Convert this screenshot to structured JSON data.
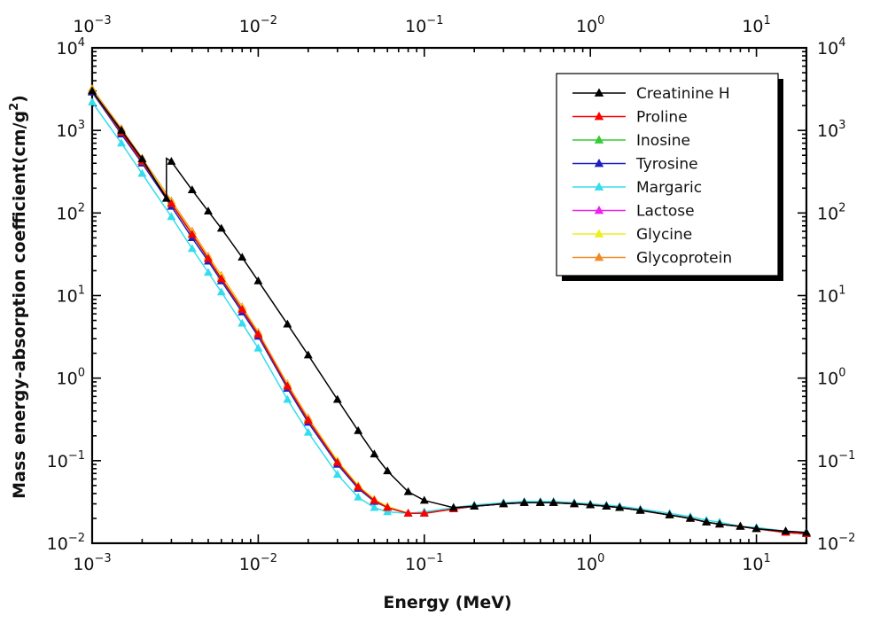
{
  "chart_data": {
    "type": "line",
    "xlabel": "Energy (MeV)",
    "ylabel": "Mass energy-absorption coefficient(cm/g",
    "ylabel_sup": "2",
    "ylabel_tail": ")",
    "x_scale": "log",
    "y_scale": "log",
    "xlim": [
      0.001,
      20
    ],
    "ylim": [
      0.01,
      10000
    ],
    "x_ticks": [
      {
        "value": 0.001,
        "base": "10",
        "exp": "−3"
      },
      {
        "value": 0.01,
        "base": "10",
        "exp": "−2"
      },
      {
        "value": 0.1,
        "base": "10",
        "exp": "−1"
      },
      {
        "value": 1,
        "base": "10",
        "exp": "0"
      },
      {
        "value": 10,
        "base": "10",
        "exp": "1"
      }
    ],
    "y_ticks": [
      {
        "value": 0.01,
        "base": "10",
        "exp": "−2"
      },
      {
        "value": 0.1,
        "base": "10",
        "exp": "−1"
      },
      {
        "value": 1,
        "base": "10",
        "exp": "0"
      },
      {
        "value": 10,
        "base": "10",
        "exp": "1"
      },
      {
        "value": 100,
        "base": "10",
        "exp": "2"
      },
      {
        "value": 1000,
        "base": "10",
        "exp": "3"
      },
      {
        "value": 10000,
        "base": "10",
        "exp": "4"
      }
    ],
    "grid": false,
    "legend_position": "top-right",
    "series": [
      {
        "name": "Creatinine H",
        "color": "#000000",
        "x": [
          0.001,
          0.0015,
          0.002,
          0.0028,
          0.0028,
          0.003,
          0.004,
          0.005,
          0.006,
          0.008,
          0.01,
          0.015,
          0.02,
          0.03,
          0.04,
          0.05,
          0.06,
          0.08,
          0.1,
          0.15,
          0.2,
          0.3,
          0.4,
          0.5,
          0.6,
          0.8,
          1,
          1.25,
          1.5,
          2,
          3,
          4,
          5,
          6,
          8,
          10,
          15,
          20
        ],
        "y": [
          3000,
          1000,
          450,
          150,
          460,
          420,
          190,
          105,
          65,
          29,
          15,
          4.5,
          1.9,
          0.55,
          0.23,
          0.12,
          0.075,
          0.042,
          0.033,
          0.027,
          0.028,
          0.03,
          0.031,
          0.031,
          0.031,
          0.03,
          0.029,
          0.028,
          0.027,
          0.025,
          0.022,
          0.02,
          0.018,
          0.017,
          0.016,
          0.015,
          0.014,
          0.0135
        ]
      },
      {
        "name": "Proline",
        "color": "#ff0000",
        "x": [
          0.001,
          0.0015,
          0.002,
          0.003,
          0.004,
          0.005,
          0.006,
          0.008,
          0.01,
          0.015,
          0.02,
          0.03,
          0.04,
          0.05,
          0.06,
          0.08,
          0.1,
          0.15,
          0.2,
          0.3,
          0.4,
          0.5,
          0.6,
          0.8,
          1,
          1.25,
          1.5,
          2,
          3,
          4,
          5,
          6,
          8,
          10,
          15,
          20
        ],
        "y": [
          3000,
          950,
          420,
          130,
          55,
          28,
          16,
          6.8,
          3.4,
          0.8,
          0.31,
          0.095,
          0.048,
          0.033,
          0.027,
          0.023,
          0.023,
          0.026,
          0.028,
          0.03,
          0.031,
          0.031,
          0.031,
          0.03,
          0.029,
          0.028,
          0.027,
          0.025,
          0.022,
          0.02,
          0.018,
          0.017,
          0.016,
          0.015,
          0.0135,
          0.013
        ]
      },
      {
        "name": "Inosine",
        "color": "#33cc33",
        "x": [
          0.001,
          0.0015,
          0.002,
          0.003,
          0.004,
          0.005,
          0.006,
          0.008,
          0.01,
          0.015,
          0.02,
          0.03,
          0.04,
          0.05,
          0.06,
          0.08,
          0.1,
          0.15,
          0.2,
          0.3,
          0.4,
          0.5,
          0.6,
          0.8,
          1,
          1.25,
          1.5,
          2,
          3,
          4,
          5,
          6,
          8,
          10,
          15,
          20
        ],
        "y": [
          3000,
          950,
          420,
          130,
          55,
          28,
          16,
          6.8,
          3.4,
          0.8,
          0.31,
          0.095,
          0.048,
          0.033,
          0.027,
          0.023,
          0.023,
          0.026,
          0.028,
          0.03,
          0.031,
          0.031,
          0.031,
          0.03,
          0.029,
          0.028,
          0.027,
          0.025,
          0.022,
          0.02,
          0.018,
          0.017,
          0.016,
          0.015,
          0.0135,
          0.013
        ]
      },
      {
        "name": "Tyrosine",
        "color": "#1f1fbf",
        "x": [
          0.001,
          0.0015,
          0.002,
          0.003,
          0.004,
          0.005,
          0.006,
          0.008,
          0.01,
          0.015,
          0.02,
          0.03,
          0.04,
          0.05,
          0.06,
          0.08,
          0.1,
          0.15,
          0.2,
          0.3,
          0.4,
          0.5,
          0.6,
          0.8,
          1,
          1.25,
          1.5,
          2,
          3,
          4,
          5,
          6,
          8,
          10,
          15,
          20
        ],
        "y": [
          2900,
          900,
          400,
          120,
          50,
          26,
          15,
          6.3,
          3.2,
          0.75,
          0.29,
          0.09,
          0.046,
          0.032,
          0.027,
          0.023,
          0.023,
          0.026,
          0.028,
          0.03,
          0.031,
          0.031,
          0.031,
          0.03,
          0.029,
          0.028,
          0.027,
          0.025,
          0.022,
          0.02,
          0.018,
          0.017,
          0.016,
          0.015,
          0.0135,
          0.013
        ]
      },
      {
        "name": "Margaric",
        "color": "#33ddee",
        "x": [
          0.001,
          0.0015,
          0.002,
          0.003,
          0.004,
          0.005,
          0.006,
          0.008,
          0.01,
          0.015,
          0.02,
          0.03,
          0.04,
          0.05,
          0.06,
          0.08,
          0.1,
          0.15,
          0.2,
          0.3,
          0.4,
          0.5,
          0.6,
          0.8,
          1,
          1.25,
          1.5,
          2,
          3,
          4,
          5,
          6,
          8,
          10,
          15,
          20
        ],
        "y": [
          2200,
          700,
          300,
          90,
          37,
          19,
          11,
          4.6,
          2.3,
          0.55,
          0.22,
          0.068,
          0.036,
          0.027,
          0.024,
          0.023,
          0.024,
          0.027,
          0.029,
          0.031,
          0.032,
          0.032,
          0.032,
          0.031,
          0.03,
          0.029,
          0.028,
          0.026,
          0.023,
          0.021,
          0.019,
          0.018,
          0.016,
          0.0155,
          0.014,
          0.0135
        ]
      },
      {
        "name": "Lactose",
        "color": "#ee22ee",
        "x": [
          0.001,
          0.0015,
          0.002,
          0.003,
          0.004,
          0.005,
          0.006,
          0.008,
          0.01,
          0.015,
          0.02,
          0.03,
          0.04,
          0.05,
          0.06,
          0.08,
          0.1,
          0.15,
          0.2,
          0.3,
          0.4,
          0.5,
          0.6,
          0.8,
          1,
          1.25,
          1.5,
          2,
          3,
          4,
          5,
          6,
          8,
          10,
          15,
          20
        ],
        "y": [
          3000,
          950,
          420,
          130,
          55,
          28,
          16,
          6.8,
          3.4,
          0.8,
          0.31,
          0.095,
          0.048,
          0.033,
          0.027,
          0.023,
          0.023,
          0.026,
          0.028,
          0.03,
          0.031,
          0.031,
          0.031,
          0.03,
          0.029,
          0.028,
          0.027,
          0.025,
          0.022,
          0.02,
          0.018,
          0.017,
          0.016,
          0.015,
          0.0135,
          0.013
        ]
      },
      {
        "name": "Glycine",
        "color": "#eeee22",
        "x": [
          0.001,
          0.0015,
          0.002,
          0.003,
          0.004,
          0.005,
          0.006,
          0.008,
          0.01,
          0.015,
          0.02,
          0.03,
          0.04,
          0.05,
          0.06,
          0.08,
          0.1,
          0.15,
          0.2,
          0.3,
          0.4,
          0.5,
          0.6,
          0.8,
          1,
          1.25,
          1.5,
          2,
          3,
          4,
          5,
          6,
          8,
          10,
          15,
          20
        ],
        "y": [
          3100,
          1000,
          440,
          135,
          57,
          29,
          17,
          7.1,
          3.5,
          0.83,
          0.32,
          0.1,
          0.05,
          0.034,
          0.028,
          0.023,
          0.023,
          0.026,
          0.028,
          0.03,
          0.031,
          0.031,
          0.031,
          0.03,
          0.029,
          0.028,
          0.027,
          0.025,
          0.022,
          0.02,
          0.018,
          0.017,
          0.016,
          0.015,
          0.0135,
          0.013
        ]
      },
      {
        "name": "Glycoprotein",
        "color": "#f08a24",
        "x": [
          0.001,
          0.0015,
          0.002,
          0.003,
          0.004,
          0.005,
          0.006,
          0.008,
          0.01,
          0.015,
          0.02,
          0.03,
          0.04,
          0.05,
          0.06,
          0.08,
          0.1,
          0.15,
          0.2,
          0.3,
          0.4,
          0.5,
          0.6,
          0.8,
          1,
          1.25,
          1.5,
          2,
          3,
          4,
          5,
          6,
          8,
          10,
          15,
          20
        ],
        "y": [
          3200,
          1050,
          460,
          140,
          60,
          30,
          17.5,
          7.3,
          3.6,
          0.85,
          0.33,
          0.1,
          0.05,
          0.034,
          0.028,
          0.023,
          0.023,
          0.026,
          0.028,
          0.03,
          0.031,
          0.031,
          0.031,
          0.03,
          0.029,
          0.028,
          0.027,
          0.025,
          0.022,
          0.02,
          0.018,
          0.017,
          0.016,
          0.015,
          0.0135,
          0.013
        ]
      }
    ]
  }
}
